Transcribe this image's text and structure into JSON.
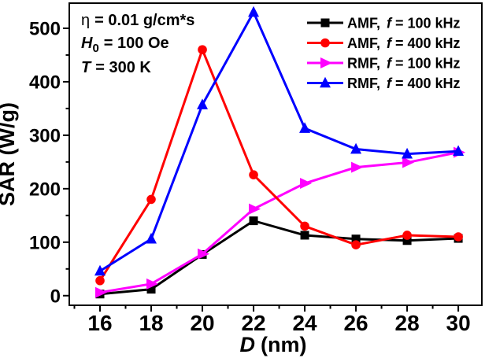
{
  "figure": {
    "background": "#ffffff",
    "frame_color": "#000000"
  },
  "annotation": {
    "eta_var": "η",
    "eta_rest": "= 0.01 g/cm*s",
    "h_var": "H",
    "h_sub": "0",
    "h_rest": "= 100 Oe",
    "t_var": "T",
    "t_rest": "= 300 K"
  },
  "chart_data": {
    "type": "line",
    "title": "",
    "xlabel": "D (nm)",
    "xlabel_var": "D",
    "xlabel_rest": "(nm)",
    "ylabel": "SAR (W/g)",
    "x": [
      16,
      18,
      20,
      22,
      24,
      26,
      28,
      30
    ],
    "x_tick_labels": [
      "16",
      "18",
      "20",
      "22",
      "24",
      "26",
      "28",
      "30"
    ],
    "x_minor_ticks": [
      15,
      17,
      19,
      21,
      23,
      25,
      27,
      29
    ],
    "y_ticks": [
      0,
      100,
      200,
      300,
      400,
      500
    ],
    "y_tick_labels": [
      "0",
      "100",
      "200",
      "300",
      "400",
      "500"
    ],
    "y_minor_ticks": [
      50,
      150,
      250,
      350,
      450
    ],
    "xlim": [
      14.8,
      30.92
    ],
    "ylim": [
      -18,
      547
    ],
    "grid": false,
    "legend_position": "top-right",
    "series": [
      {
        "name": "AMF, f = 100 kHz",
        "label_prefix": "AMF,",
        "label_fvar": "f",
        "label_suffix": "= 100 kHz",
        "color": "#000000",
        "marker": "square",
        "values": [
          3,
          12,
          77,
          140,
          113,
          106,
          103,
          107
        ]
      },
      {
        "name": "AMF, f = 400 kHz",
        "label_prefix": "AMF,",
        "label_fvar": "f",
        "label_suffix": "= 400 kHz",
        "color": "#ff0000",
        "marker": "circle",
        "values": [
          28,
          180,
          460,
          226,
          130,
          95,
          113,
          110
        ]
      },
      {
        "name": "RMF, f = 100 kHz",
        "label_prefix": "RMF,",
        "label_fvar": "f",
        "label_suffix": "= 100 kHz",
        "color": "#ff00ff",
        "marker": "triangle-right",
        "values": [
          6,
          22,
          78,
          162,
          210,
          240,
          249,
          268
        ]
      },
      {
        "name": "RMF, f = 400 kHz",
        "label_prefix": "RMF,",
        "label_fvar": "f",
        "label_suffix": "= 400 kHz",
        "color": "#0000ff",
        "marker": "triangle-up",
        "values": [
          46,
          106,
          357,
          530,
          313,
          274,
          265,
          270
        ]
      }
    ]
  }
}
